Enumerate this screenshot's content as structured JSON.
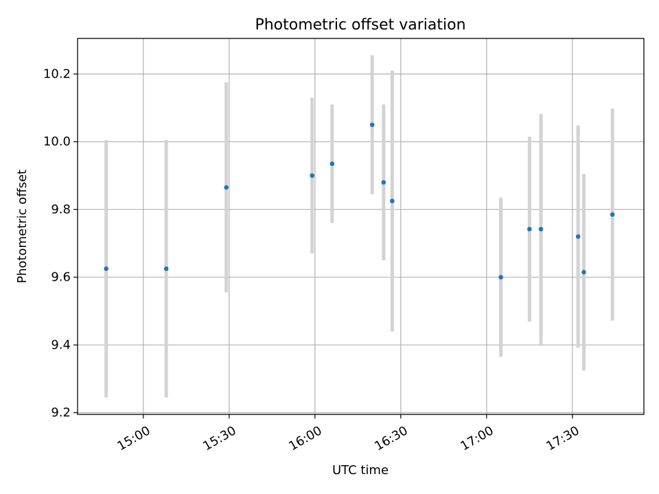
{
  "chart_data": {
    "type": "scatter",
    "title": "Photometric offset variation",
    "xlabel": "UTC time",
    "ylabel": "Photometric offset",
    "x_ticks": [
      "15:00",
      "15:30",
      "16:00",
      "16:30",
      "17:00",
      "17:30"
    ],
    "y_ticks": [
      "9.2",
      "9.4",
      "9.6",
      "9.8",
      "10.0",
      "10.2"
    ],
    "xlim": [
      "14:37",
      "17:55"
    ],
    "ylim": [
      9.195,
      10.305
    ],
    "grid": true,
    "marker_color": "#1f77b4",
    "errorbar_color": "#d3d3d3",
    "points": [
      {
        "x": "14:47",
        "y": 9.625,
        "yerr": 0.38
      },
      {
        "x": "15:08",
        "y": 9.625,
        "yerr": 0.38
      },
      {
        "x": "15:29",
        "y": 9.865,
        "yerr": 0.31
      },
      {
        "x": "15:59",
        "y": 9.9,
        "yerr": 0.23
      },
      {
        "x": "16:06",
        "y": 9.935,
        "yerr": 0.175
      },
      {
        "x": "16:20",
        "y": 10.05,
        "yerr": 0.205
      },
      {
        "x": "16:24",
        "y": 9.88,
        "yerr": 0.23
      },
      {
        "x": "16:27",
        "y": 9.825,
        "yerr": 0.385
      },
      {
        "x": "17:05",
        "y": 9.6,
        "yerr": 0.235
      },
      {
        "x": "17:15",
        "y": 9.742,
        "yerr": 0.273
      },
      {
        "x": "17:19",
        "y": 9.742,
        "yerr": 0.34
      },
      {
        "x": "17:32",
        "y": 9.72,
        "yerr": 0.328
      },
      {
        "x": "17:34",
        "y": 9.615,
        "yerr": 0.29
      },
      {
        "x": "17:44",
        "y": 9.785,
        "yerr": 0.313
      }
    ]
  }
}
